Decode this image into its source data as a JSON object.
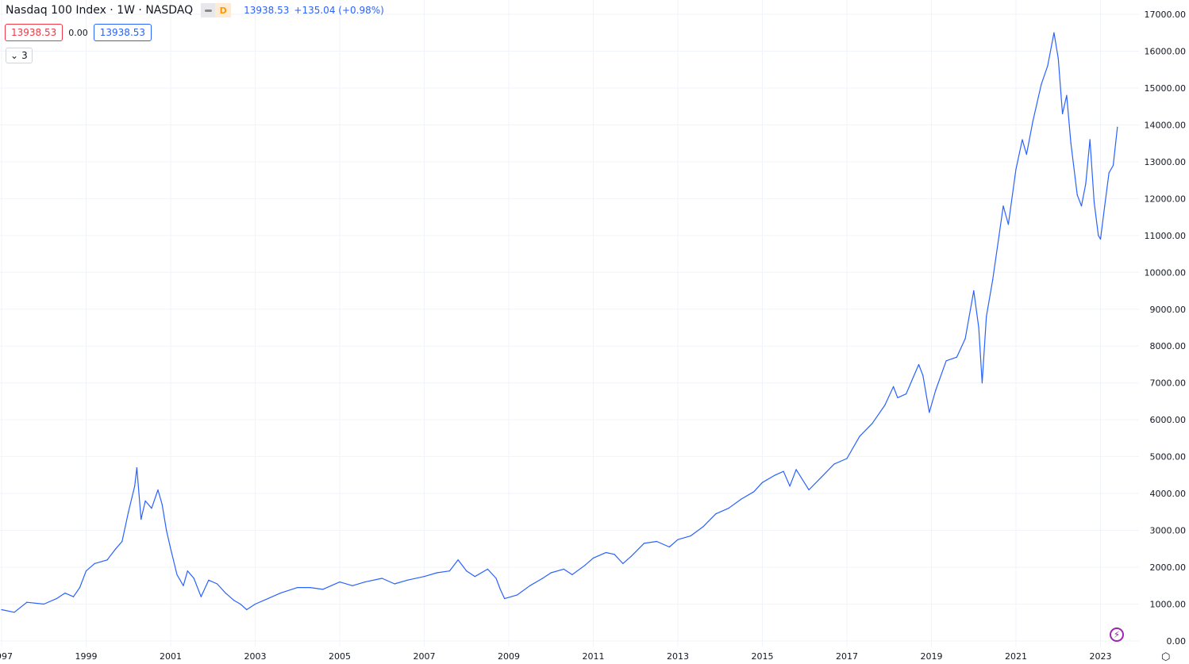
{
  "legend": {
    "title": "Nasdaq 100 Index · 1W · NASDAQ",
    "badge_letter": "D",
    "last": "13938.53",
    "change": "+135.04 (+0.98%)",
    "bid": "13938.53",
    "spread": "0.00",
    "ask": "13938.53",
    "collapsed_count": "3"
  },
  "colors": {
    "line": "#2962ff",
    "sell": "#f23645",
    "buy": "#2962ff",
    "grid": "#f0f3fa",
    "text": "#131722",
    "accent": "#9c27b0"
  },
  "icons": {
    "collapse": "chevron-down-icon",
    "bolt": "lightning-icon",
    "settings": "hexagon-settings-icon"
  },
  "chart_data": {
    "type": "line",
    "title": "",
    "xlabel": "",
    "ylabel": "",
    "xlim": [
      1997,
      2024.1
    ],
    "ylim": [
      0,
      17000
    ],
    "grid": true,
    "x_ticks": [
      "1997",
      "1999",
      "2001",
      "2003",
      "2005",
      "2007",
      "2009",
      "2011",
      "2013",
      "2015",
      "2017",
      "2019",
      "2021",
      "2023"
    ],
    "y_ticks": [
      "0.00",
      "1000.00",
      "2000.00",
      "3000.00",
      "4000.00",
      "5000.00",
      "6000.00",
      "7000.00",
      "8000.00",
      "9000.00",
      "10000.00",
      "11000.00",
      "12000.00",
      "13000.00",
      "14000.00",
      "15000.00",
      "16000.00",
      "17000.00"
    ],
    "series": [
      {
        "x": [
          1997.0,
          1997.3,
          1997.6,
          1998.0,
          1998.3,
          1998.5,
          1998.7,
          1998.85,
          1999.0,
          1999.2,
          1999.5,
          1999.7,
          1999.85,
          2000.0,
          2000.15,
          2000.2,
          2000.3,
          2000.4,
          2000.55,
          2000.7,
          2000.8,
          2000.9,
          2001.0,
          2001.15,
          2001.3,
          2001.4,
          2001.55,
          2001.72,
          2001.9,
          2002.1,
          2002.3,
          2002.5,
          2002.65,
          2002.8,
          2003.0,
          2003.3,
          2003.6,
          2004.0,
          2004.3,
          2004.6,
          2005.0,
          2005.3,
          2005.6,
          2006.0,
          2006.3,
          2006.6,
          2007.0,
          2007.3,
          2007.6,
          2007.8,
          2008.0,
          2008.2,
          2008.5,
          2008.7,
          2008.8,
          2008.9,
          2009.2,
          2009.5,
          2009.8,
          2010.0,
          2010.3,
          2010.5,
          2010.8,
          2011.0,
          2011.3,
          2011.5,
          2011.7,
          2011.9,
          2012.2,
          2012.5,
          2012.8,
          2013.0,
          2013.3,
          2013.6,
          2013.9,
          2014.2,
          2014.5,
          2014.8,
          2015.0,
          2015.3,
          2015.5,
          2015.65,
          2015.8,
          2016.1,
          2016.4,
          2016.7,
          2017.0,
          2017.3,
          2017.6,
          2017.9,
          2018.1,
          2018.2,
          2018.4,
          2018.7,
          2018.8,
          2018.95,
          2019.1,
          2019.35,
          2019.6,
          2019.8,
          2020.0,
          2020.12,
          2020.2,
          2020.3,
          2020.45,
          2020.6,
          2020.7,
          2020.82,
          2021.0,
          2021.15,
          2021.25,
          2021.4,
          2021.6,
          2021.75,
          2021.9,
          2022.0,
          2022.1,
          2022.2,
          2022.3,
          2022.45,
          2022.55,
          2022.65,
          2022.75,
          2022.85,
          2022.95,
          2023.0,
          2023.1,
          2023.2,
          2023.3,
          2023.4
        ],
        "y": [
          850,
          780,
          1050,
          1000,
          1150,
          1300,
          1200,
          1450,
          1900,
          2100,
          2200,
          2500,
          2700,
          3500,
          4200,
          4700,
          3300,
          3800,
          3600,
          4100,
          3700,
          3000,
          2500,
          1800,
          1500,
          1900,
          1700,
          1200,
          1650,
          1550,
          1300,
          1100,
          1000,
          850,
          1000,
          1150,
          1300,
          1450,
          1450,
          1400,
          1600,
          1500,
          1600,
          1700,
          1550,
          1650,
          1750,
          1850,
          1900,
          2200,
          1900,
          1750,
          1950,
          1700,
          1400,
          1150,
          1250,
          1500,
          1700,
          1850,
          1950,
          1800,
          2050,
          2250,
          2400,
          2350,
          2100,
          2300,
          2650,
          2700,
          2550,
          2750,
          2850,
          3100,
          3450,
          3600,
          3850,
          4050,
          4300,
          4500,
          4600,
          4200,
          4650,
          4100,
          4450,
          4800,
          4950,
          5550,
          5900,
          6400,
          6900,
          6600,
          6700,
          7500,
          7200,
          6200,
          6800,
          7600,
          7700,
          8200,
          9500,
          8500,
          7000,
          8800,
          9800,
          11000,
          11800,
          11300,
          12800,
          13600,
          13200,
          14100,
          15100,
          15600,
          16500,
          15800,
          14300,
          14800,
          13500,
          12100,
          11800,
          12400,
          13600,
          11900,
          11000,
          10900,
          11800,
          12700,
          12900,
          13938.53
        ]
      }
    ]
  }
}
